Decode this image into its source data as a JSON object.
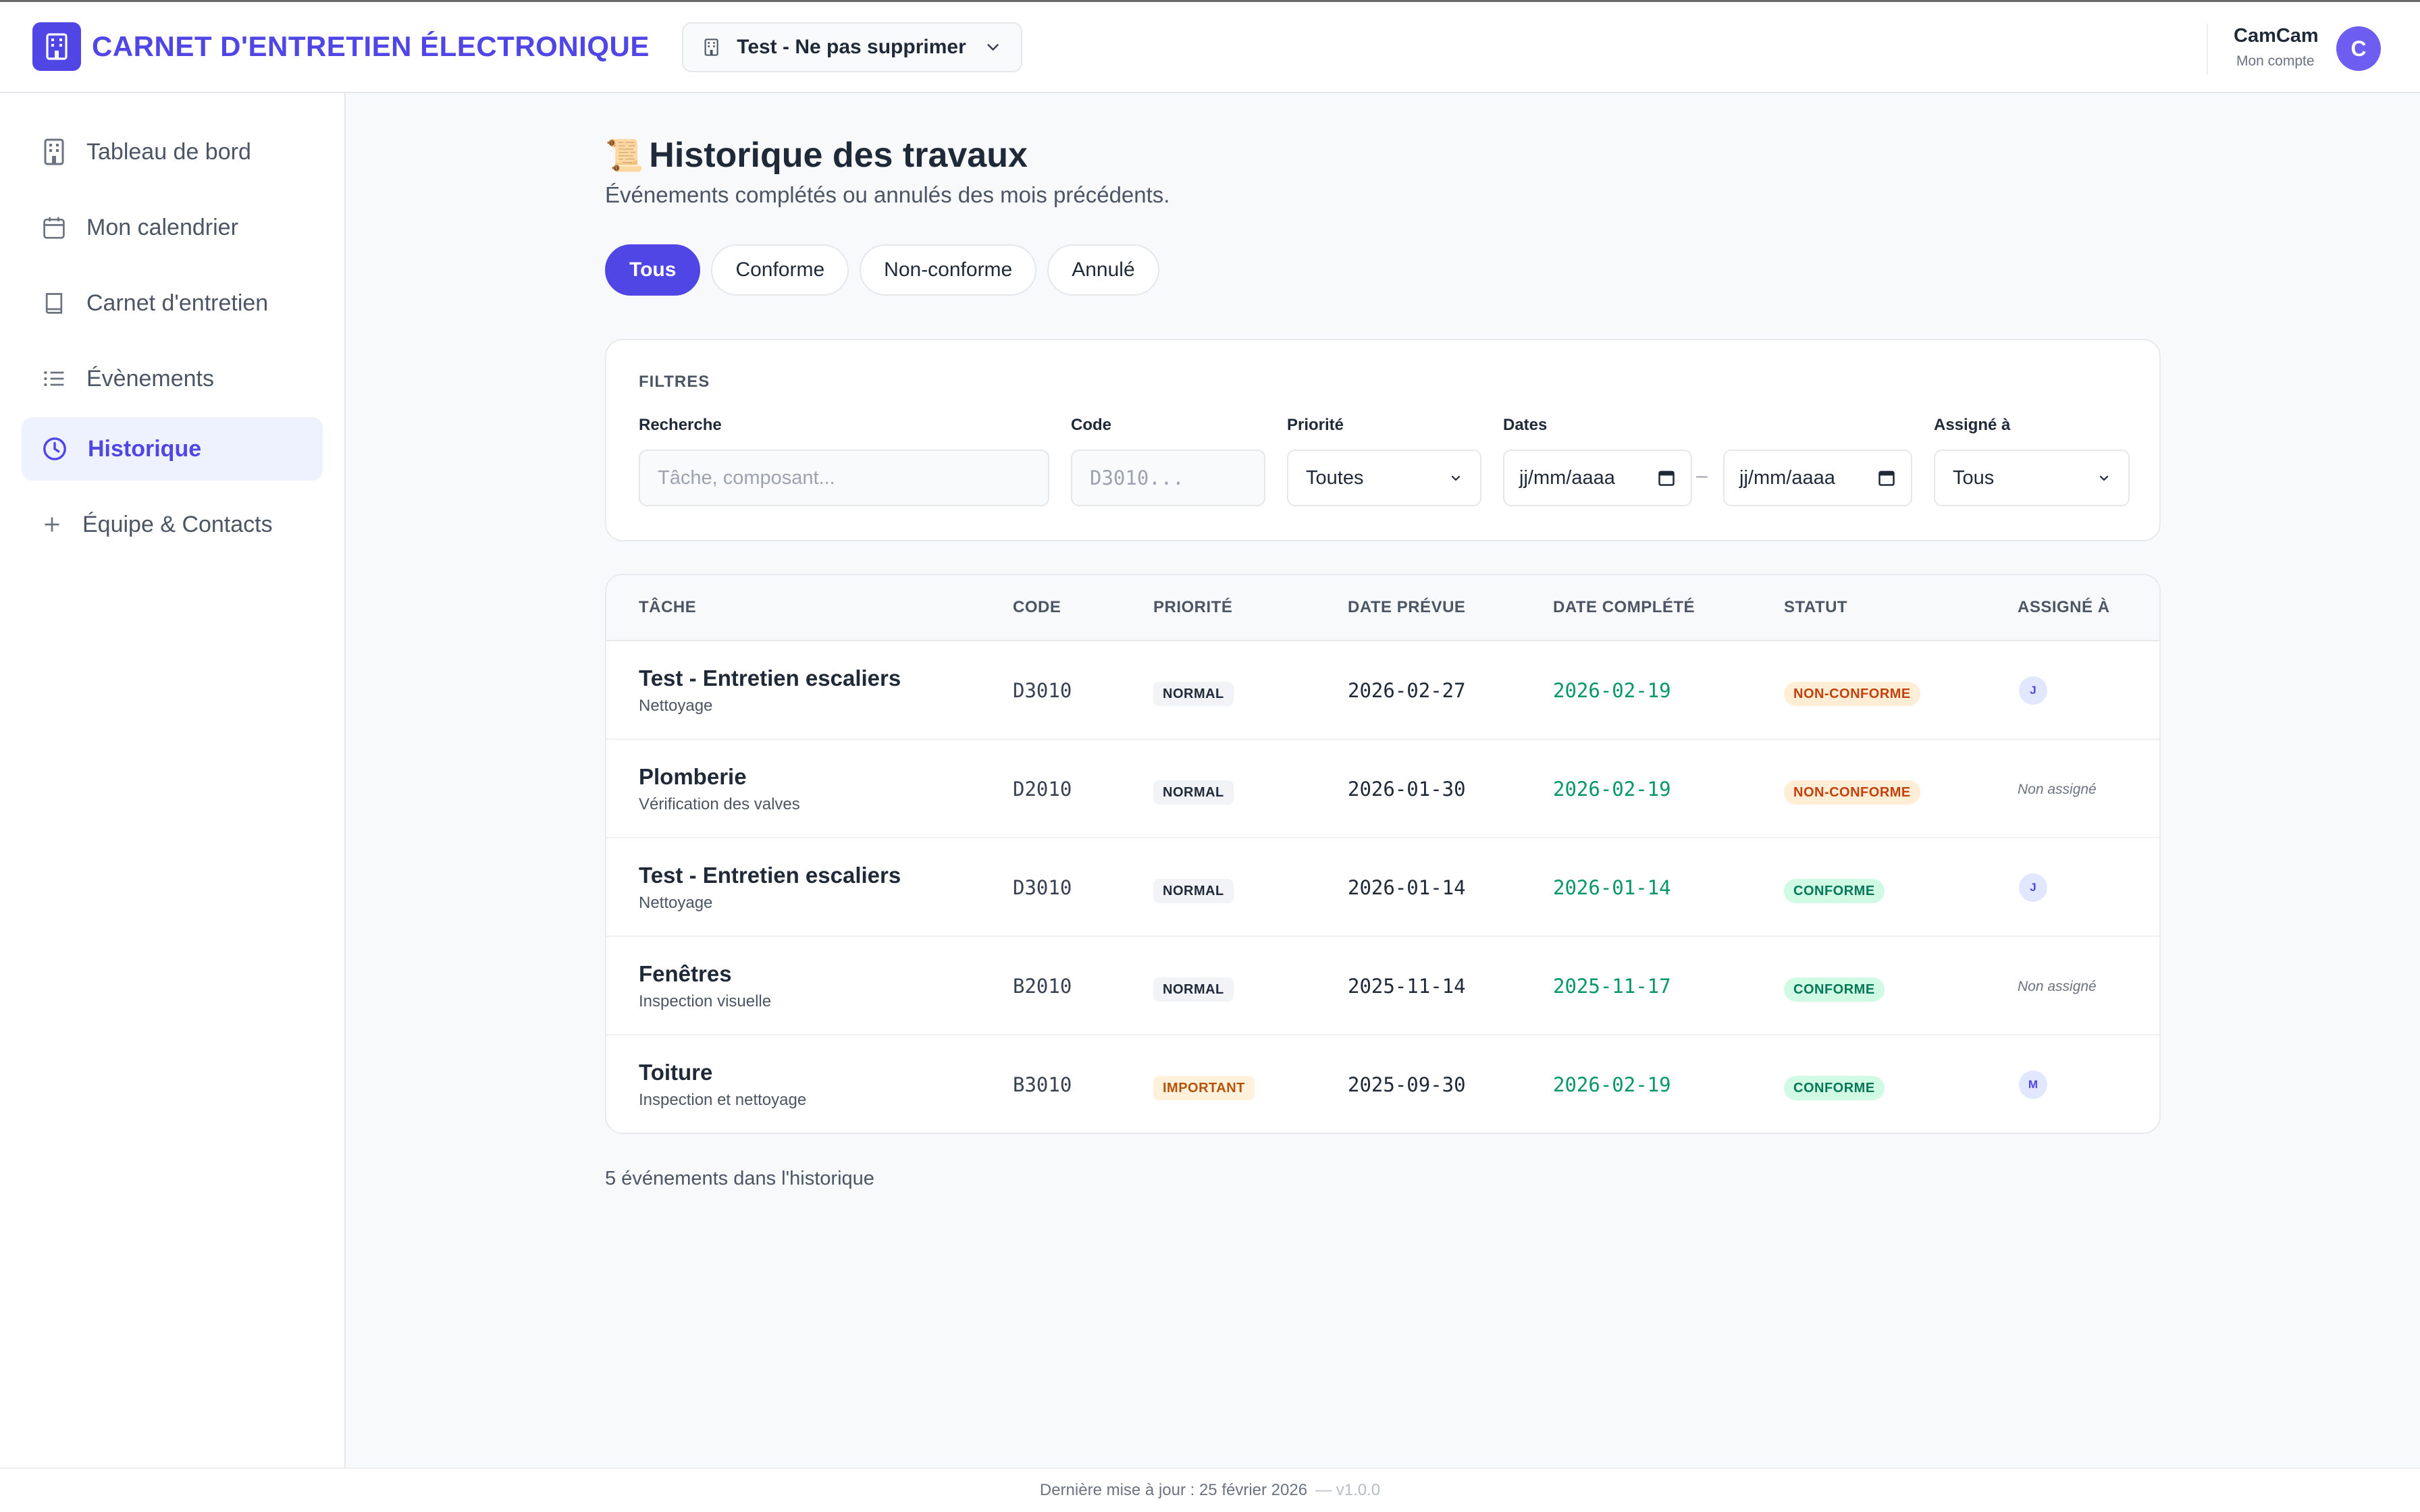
{
  "header": {
    "app_title": "CARNET D'ENTRETIEN ÉLECTRONIQUE",
    "building_selector": "Test - Ne pas supprimer",
    "user_name": "CamCam",
    "user_sub": "Mon compte",
    "avatar_initial": "C"
  },
  "sidebar": {
    "items": [
      {
        "label": "Tableau de bord",
        "icon": "building-icon"
      },
      {
        "label": "Mon calendrier",
        "icon": "calendar-icon"
      },
      {
        "label": "Carnet d'entretien",
        "icon": "book-icon"
      },
      {
        "label": "Évènements",
        "icon": "list-icon"
      },
      {
        "label": "Historique",
        "icon": "clock-icon",
        "active": true
      },
      {
        "label": "Équipe & Contacts",
        "icon": "plus-icon"
      }
    ]
  },
  "main": {
    "title_emoji": "📜",
    "title": "Historique des travaux",
    "subtitle": "Événements complétés ou annulés des mois précédents.",
    "tabs": [
      {
        "label": "Tous",
        "active": true
      },
      {
        "label": "Conforme"
      },
      {
        "label": "Non-conforme"
      },
      {
        "label": "Annulé"
      }
    ],
    "filters": {
      "title": "FILTRES",
      "search_label": "Recherche",
      "search_placeholder": "Tâche, composant...",
      "code_label": "Code",
      "code_placeholder": "D3010...",
      "priority_label": "Priorité",
      "priority_value": "Toutes",
      "dates_label": "Dates",
      "date_from": "jj/mm/aaaa",
      "date_to": "jj/mm/aaaa",
      "dates_separator": "–",
      "assigned_label": "Assigné à",
      "assigned_value": "Tous"
    },
    "table": {
      "headers": [
        "TÂCHE",
        "CODE",
        "PRIORITÉ",
        "DATE PRÉVUE",
        "DATE COMPLÉTÉ",
        "STATUT",
        "ASSIGNÉ À"
      ],
      "rows": [
        {
          "title": "Test - Entretien escaliers",
          "sub": "Nettoyage",
          "code": "D3010",
          "priority": "NORMAL",
          "due": "2026-02-27",
          "done": "2026-02-19",
          "status": "NON-CONFORME",
          "assignee": "J"
        },
        {
          "title": "Plomberie",
          "sub": "Vérification des valves",
          "code": "D2010",
          "priority": "NORMAL",
          "due": "2026-01-30",
          "done": "2026-02-19",
          "status": "NON-CONFORME",
          "assignee": "Non assigné"
        },
        {
          "title": "Test - Entretien escaliers",
          "sub": "Nettoyage",
          "code": "D3010",
          "priority": "NORMAL",
          "due": "2026-01-14",
          "done": "2026-01-14",
          "status": "CONFORME",
          "assignee": "J"
        },
        {
          "title": "Fenêtres",
          "sub": "Inspection visuelle",
          "code": "B2010",
          "priority": "NORMAL",
          "due": "2025-11-14",
          "done": "2025-11-17",
          "status": "CONFORME",
          "assignee": "Non assigné"
        },
        {
          "title": "Toiture",
          "sub": "Inspection et nettoyage",
          "code": "B3010",
          "priority": "IMPORTANT",
          "due": "2025-09-30",
          "done": "2026-02-19",
          "status": "CONFORME",
          "assignee": "M"
        }
      ]
    },
    "count_text": "5 événements dans l'historique"
  },
  "footer": {
    "updated": "Dernière mise à jour : 25 février 2026",
    "version": "— v1.0.0"
  },
  "colors": {
    "accent": "#4f46e5",
    "conforme": "#047857",
    "non_conforme": "#c2410c",
    "important": "#b45309",
    "completed_date": "#059669"
  }
}
